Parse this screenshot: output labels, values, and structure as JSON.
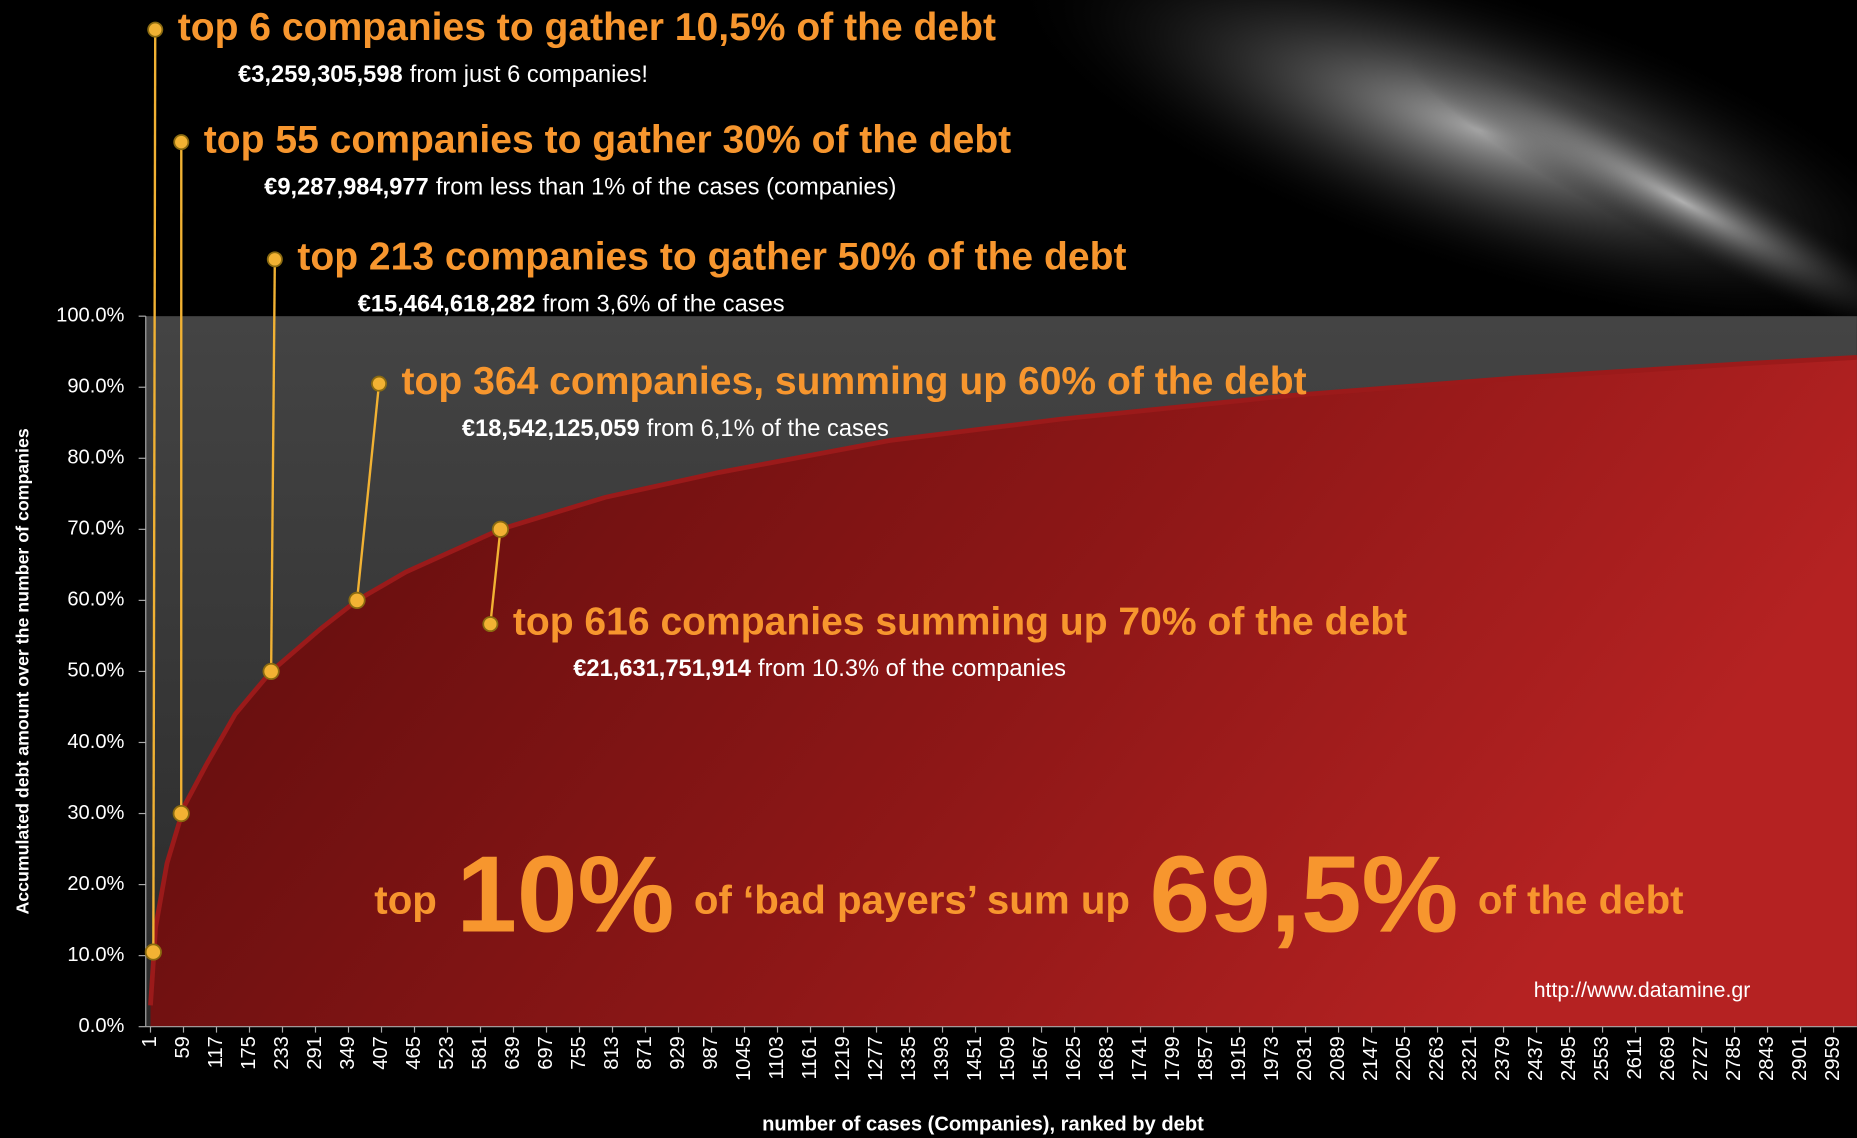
{
  "chart_data": {
    "type": "area",
    "x": [
      1,
      10,
      30,
      60,
      100,
      150,
      213,
      300,
      364,
      450,
      616,
      800,
      1000,
      1300,
      1600,
      2000,
      2400,
      2800,
      3000
    ],
    "values": [
      3,
      14,
      23,
      31,
      37,
      44,
      50,
      56,
      60,
      64,
      70,
      74.5,
      78,
      82.5,
      85.5,
      88.8,
      91.3,
      93.3,
      94.2
    ],
    "color": "#9b1a1a",
    "markers": {
      "x": [
        6,
        55,
        213,
        364,
        616
      ],
      "values": [
        10.5,
        30,
        50,
        60,
        70
      ],
      "color": "#f2b233"
    },
    "xlim": [
      1,
      3000
    ],
    "xticks": [
      1,
      59,
      117,
      175,
      233,
      291,
      349,
      407,
      465,
      523,
      581,
      639,
      697,
      755,
      813,
      871,
      929,
      987,
      1045,
      1103,
      1161,
      1219,
      1277,
      1335,
      1393,
      1451,
      1509,
      1567,
      1625,
      1683,
      1741,
      1799,
      1857,
      1915,
      1973,
      2031,
      2089,
      2147,
      2205,
      2263,
      2321,
      2379,
      2437,
      2495,
      2553,
      2611,
      2669,
      2727,
      2785,
      2843,
      2901,
      2959
    ],
    "ylim": [
      0,
      100
    ],
    "yticks": [
      {
        "value": 0,
        "label": "0.0%"
      },
      {
        "value": 10,
        "label": "10.0%"
      },
      {
        "value": 20,
        "label": "20.0%"
      },
      {
        "value": 30,
        "label": "30.0%"
      },
      {
        "value": 40,
        "label": "40.0%"
      },
      {
        "value": 50,
        "label": "50.0%"
      },
      {
        "value": 60,
        "label": "60.0%"
      },
      {
        "value": 70,
        "label": "70.0%"
      },
      {
        "value": 80,
        "label": "80.0%"
      },
      {
        "value": 90,
        "label": "90.0%"
      },
      {
        "value": 100,
        "label": "100.0%"
      }
    ],
    "grid": false,
    "xlabel": "number of cases (Companies), ranked by debt",
    "ylabel": "Accumulated debt amount over the number of companies",
    "annotations": [
      {
        "title": "top 6 companies to gather 10,5% of the debt",
        "amount": "€3,259,305,598",
        "note": "from just 6 companies!"
      },
      {
        "title": "top 55 companies to gather 30% of the debt",
        "amount": "€9,287,984,977",
        "note": "from less than 1% of the cases (companies)"
      },
      {
        "title": "top 213 companies to gather 50% of the debt",
        "amount": "€15,464,618,282",
        "note": "from 3,6% of the cases"
      },
      {
        "title": "top 364 companies, summing up 60% of the debt",
        "amount": "€18,542,125,059",
        "note": "from 6,1% of the cases"
      },
      {
        "title": "top 616 companies summing up 70% of the debt",
        "amount": "€21,631,751,914",
        "note": "from 10.3% of the companies"
      }
    ],
    "headline": [
      "top",
      "10%",
      "of ‘bad payers’ sum up",
      "69,5%",
      "of the debt"
    ],
    "source": "http://www.datamine.gr"
  }
}
